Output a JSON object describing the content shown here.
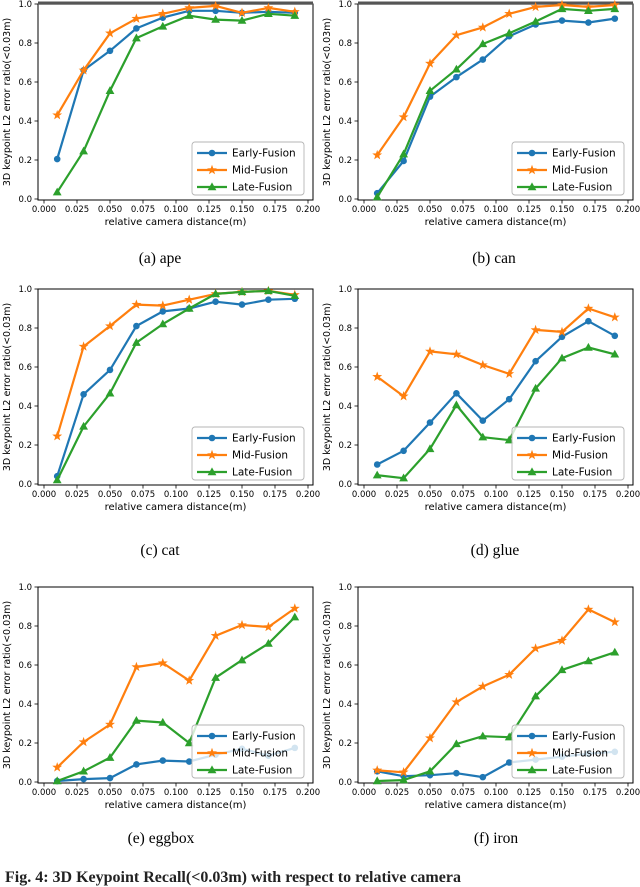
{
  "figure": {
    "caption": "Fig. 4: 3D Keypoint Recall(<0.03m) with respect to relative camera",
    "ylabel": "3D keypoint L2 error ratio(<0.03m)",
    "xlabel": "relative camera distance(m)",
    "x_tick_labels": [
      "0.000",
      "0.025",
      "0.050",
      "0.075",
      "0.100",
      "0.125",
      "0.150",
      "0.175",
      "0.200"
    ],
    "y_tick_labels": [
      "0.0",
      "0.2",
      "0.4",
      "0.6",
      "0.8",
      "1.0"
    ],
    "legend_labels": [
      "Early-Fusion",
      "Mid-Fusion",
      "Late-Fusion"
    ],
    "colors": {
      "early_fusion": "#1f77b4",
      "mid_fusion": "#ff7f0e",
      "late_fusion": "#2ca02c",
      "top_bar": "#555555",
      "legend_border": "#b5b5b5"
    }
  },
  "chart_data": [
    {
      "type": "line",
      "subplot": "(a)",
      "object": "ape",
      "caption": "(a) ape",
      "xlabel": "relative camera distance(m)",
      "ylabel": "3D keypoint L2 error ratio(<0.03m)",
      "xlim": [
        0,
        0.2
      ],
      "ylim": [
        0,
        1
      ],
      "grid": false,
      "legend_position": "lower right",
      "top_bar": true,
      "x": [
        0.01,
        0.03,
        0.05,
        0.07,
        0.09,
        0.11,
        0.13,
        0.15,
        0.17,
        0.19
      ],
      "series": [
        {
          "name": "Early-Fusion",
          "marker": "circle",
          "color": "#1f77b4",
          "values": [
            0.205,
            0.66,
            0.76,
            0.875,
            0.93,
            0.965,
            0.965,
            0.955,
            0.96,
            0.955
          ]
        },
        {
          "name": "Mid-Fusion",
          "marker": "star",
          "color": "#ff7f0e",
          "values": [
            0.43,
            0.66,
            0.85,
            0.925,
            0.95,
            0.98,
            0.99,
            0.955,
            0.98,
            0.96
          ]
        },
        {
          "name": "Late-Fusion",
          "marker": "triangle",
          "color": "#2ca02c",
          "values": [
            0.035,
            0.245,
            0.555,
            0.825,
            0.885,
            0.94,
            0.92,
            0.915,
            0.95,
            0.94
          ]
        }
      ]
    },
    {
      "type": "line",
      "subplot": "(b)",
      "object": "can",
      "caption": "(b) can",
      "xlabel": "relative camera distance(m)",
      "ylabel": "3D keypoint L2 error ratio(<0.03m)",
      "xlim": [
        0,
        0.2
      ],
      "ylim": [
        0,
        1
      ],
      "grid": false,
      "legend_position": "lower right",
      "top_bar": true,
      "x": [
        0.01,
        0.03,
        0.05,
        0.07,
        0.09,
        0.11,
        0.13,
        0.15,
        0.17,
        0.19
      ],
      "series": [
        {
          "name": "Early-Fusion",
          "marker": "circle",
          "color": "#1f77b4",
          "values": [
            0.03,
            0.195,
            0.525,
            0.625,
            0.715,
            0.835,
            0.895,
            0.915,
            0.905,
            0.925
          ]
        },
        {
          "name": "Mid-Fusion",
          "marker": "star",
          "color": "#ff7f0e",
          "values": [
            0.225,
            0.42,
            0.695,
            0.84,
            0.88,
            0.95,
            0.985,
            0.995,
            0.985,
            0.995
          ]
        },
        {
          "name": "Late-Fusion",
          "marker": "triangle",
          "color": "#2ca02c",
          "values": [
            0.01,
            0.23,
            0.555,
            0.665,
            0.795,
            0.85,
            0.91,
            0.975,
            0.965,
            0.975
          ]
        }
      ]
    },
    {
      "type": "line",
      "subplot": "(c)",
      "object": "cat",
      "caption": "(c) cat",
      "xlabel": "relative camera distance(m)",
      "ylabel": "3D keypoint L2 error ratio(<0.03m)",
      "xlim": [
        0,
        0.2
      ],
      "ylim": [
        0,
        1
      ],
      "grid": false,
      "legend_position": "lower right",
      "top_bar": false,
      "x": [
        0.01,
        0.03,
        0.05,
        0.07,
        0.09,
        0.11,
        0.13,
        0.15,
        0.17,
        0.19
      ],
      "series": [
        {
          "name": "Early-Fusion",
          "marker": "circle",
          "color": "#1f77b4",
          "values": [
            0.04,
            0.46,
            0.585,
            0.81,
            0.885,
            0.9,
            0.935,
            0.92,
            0.945,
            0.95
          ]
        },
        {
          "name": "Mid-Fusion",
          "marker": "star",
          "color": "#ff7f0e",
          "values": [
            0.245,
            0.705,
            0.81,
            0.92,
            0.915,
            0.945,
            0.975,
            0.985,
            0.99,
            0.97
          ]
        },
        {
          "name": "Late-Fusion",
          "marker": "triangle",
          "color": "#2ca02c",
          "values": [
            0.02,
            0.295,
            0.465,
            0.725,
            0.82,
            0.9,
            0.975,
            0.985,
            0.99,
            0.965
          ]
        }
      ]
    },
    {
      "type": "line",
      "subplot": "(d)",
      "object": "glue",
      "caption": "(d) glue",
      "xlabel": "relative camera distance(m)",
      "ylabel": "3D keypoint L2 error ratio(<0.03m)",
      "xlim": [
        0,
        0.2
      ],
      "ylim": [
        0,
        1
      ],
      "grid": false,
      "legend_position": "lower right",
      "top_bar": false,
      "x": [
        0.01,
        0.03,
        0.05,
        0.07,
        0.09,
        0.11,
        0.13,
        0.15,
        0.17,
        0.19
      ],
      "series": [
        {
          "name": "Early-Fusion",
          "marker": "circle",
          "color": "#1f77b4",
          "values": [
            0.1,
            0.17,
            0.315,
            0.465,
            0.325,
            0.435,
            0.63,
            0.755,
            0.835,
            0.76
          ]
        },
        {
          "name": "Mid-Fusion",
          "marker": "star",
          "color": "#ff7f0e",
          "values": [
            0.55,
            0.45,
            0.68,
            0.665,
            0.61,
            0.565,
            0.79,
            0.78,
            0.9,
            0.855
          ]
        },
        {
          "name": "Late-Fusion",
          "marker": "triangle",
          "color": "#2ca02c",
          "values": [
            0.045,
            0.03,
            0.18,
            0.405,
            0.24,
            0.225,
            0.49,
            0.645,
            0.7,
            0.665
          ]
        }
      ]
    },
    {
      "type": "line",
      "subplot": "(e)",
      "object": "eggbox",
      "caption": "(e) eggbox",
      "xlabel": "relative camera distance(m)",
      "ylabel": "3D keypoint L2 error ratio(<0.03m)",
      "xlim": [
        0,
        0.2
      ],
      "ylim": [
        0,
        1
      ],
      "grid": false,
      "legend_position": "lower right",
      "top_bar": false,
      "x": [
        0.01,
        0.03,
        0.05,
        0.07,
        0.09,
        0.11,
        0.13,
        0.15,
        0.17,
        0.19
      ],
      "series": [
        {
          "name": "Early-Fusion",
          "marker": "circle",
          "color": "#1f77b4",
          "values": [
            0.005,
            0.015,
            0.02,
            0.09,
            0.11,
            0.105,
            0.14,
            0.17,
            0.135,
            0.175
          ]
        },
        {
          "name": "Mid-Fusion",
          "marker": "star",
          "color": "#ff7f0e",
          "values": [
            0.075,
            0.205,
            0.295,
            0.59,
            0.61,
            0.52,
            0.75,
            0.805,
            0.795,
            0.89
          ]
        },
        {
          "name": "Late-Fusion",
          "marker": "triangle",
          "color": "#2ca02c",
          "values": [
            0.005,
            0.055,
            0.125,
            0.315,
            0.305,
            0.2,
            0.535,
            0.625,
            0.71,
            0.845
          ]
        }
      ]
    },
    {
      "type": "line",
      "subplot": "(f)",
      "object": "iron",
      "caption": "(f) iron",
      "xlabel": "relative camera distance(m)",
      "ylabel": "3D keypoint L2 error ratio(<0.03m)",
      "xlim": [
        0,
        0.2
      ],
      "ylim": [
        0,
        1
      ],
      "grid": false,
      "legend_position": "lower right",
      "top_bar": false,
      "x": [
        0.01,
        0.03,
        0.05,
        0.07,
        0.09,
        0.11,
        0.13,
        0.15,
        0.17,
        0.19
      ],
      "series": [
        {
          "name": "Early-Fusion",
          "marker": "circle",
          "color": "#1f77b4",
          "values": [
            0.055,
            0.03,
            0.035,
            0.045,
            0.025,
            0.1,
            0.115,
            0.13,
            0.145,
            0.155
          ]
        },
        {
          "name": "Mid-Fusion",
          "marker": "star",
          "color": "#ff7f0e",
          "values": [
            0.06,
            0.05,
            0.225,
            0.41,
            0.49,
            0.55,
            0.685,
            0.725,
            0.885,
            0.82
          ]
        },
        {
          "name": "Late-Fusion",
          "marker": "triangle",
          "color": "#2ca02c",
          "values": [
            0.005,
            0.01,
            0.055,
            0.195,
            0.235,
            0.23,
            0.44,
            0.575,
            0.62,
            0.665
          ]
        }
      ]
    }
  ]
}
